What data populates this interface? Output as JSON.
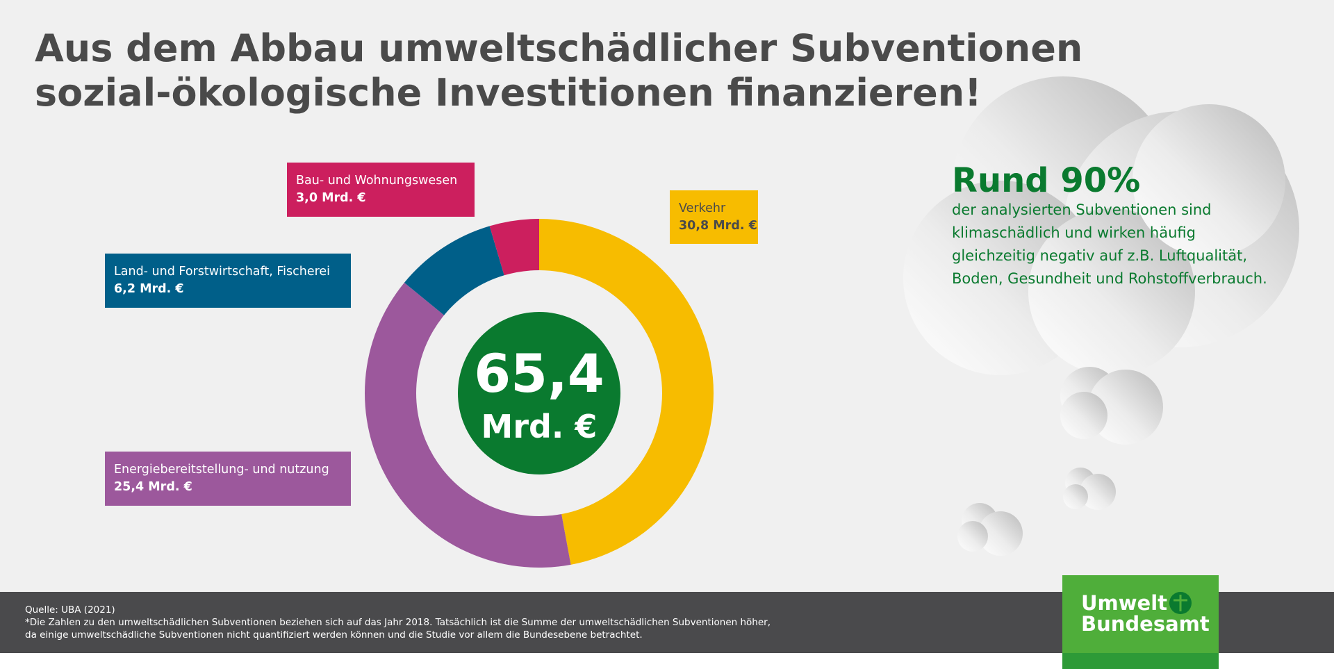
{
  "chart_data": {
    "type": "donut",
    "title_lines": [
      "Aus dem Abbau umweltschädlicher Subventionen",
      "sozial-ökologische Investitionen finanzieren!"
    ],
    "categories": [
      "Verkehr",
      "Energiebereitstellung- und nutzung",
      "Land- und Forstwirtschaft, Fischerei",
      "Bau- und Wohnungswesen"
    ],
    "values": [
      30.8,
      25.4,
      6.2,
      3.0
    ],
    "value_labels": [
      "30,8 Mrd. €",
      "25,4 Mrd. €",
      "6,2 Mrd. €",
      "3,0 Mrd. €"
    ],
    "colors": [
      "#f7bc00",
      "#9c589c",
      "#005f89",
      "#cc1f5e"
    ],
    "total": 65.4,
    "total_label": "65,4",
    "total_unit": "Mrd. €",
    "total_color": "#0a7a2f",
    "annotation": {
      "headline": "Rund 90%",
      "lines": [
        "der analysierten Subventionen sind",
        "klimaschädlich und wirken häufig",
        "gleichzeitig negativ auf z.B. Luftqualität,",
        "Boden, Gesundheit und Rohstoffverbrauch."
      ]
    },
    "footer": {
      "lines": [
        "Quelle: UBA (2021)",
        "*Die Zahlen zu den umweltschädlichen Subventionen beziehen sich auf das Jahr 2018. Tatsächlich ist die Summe der umweltschädlichen Subventionen höher,",
        "da einige umweltschädliche Subventionen nicht quantifiziert werden können und die Studie vor allem die Bundesebene betrachtet."
      ],
      "logo": [
        "Umwelt",
        "Bundesamt"
      ]
    }
  }
}
